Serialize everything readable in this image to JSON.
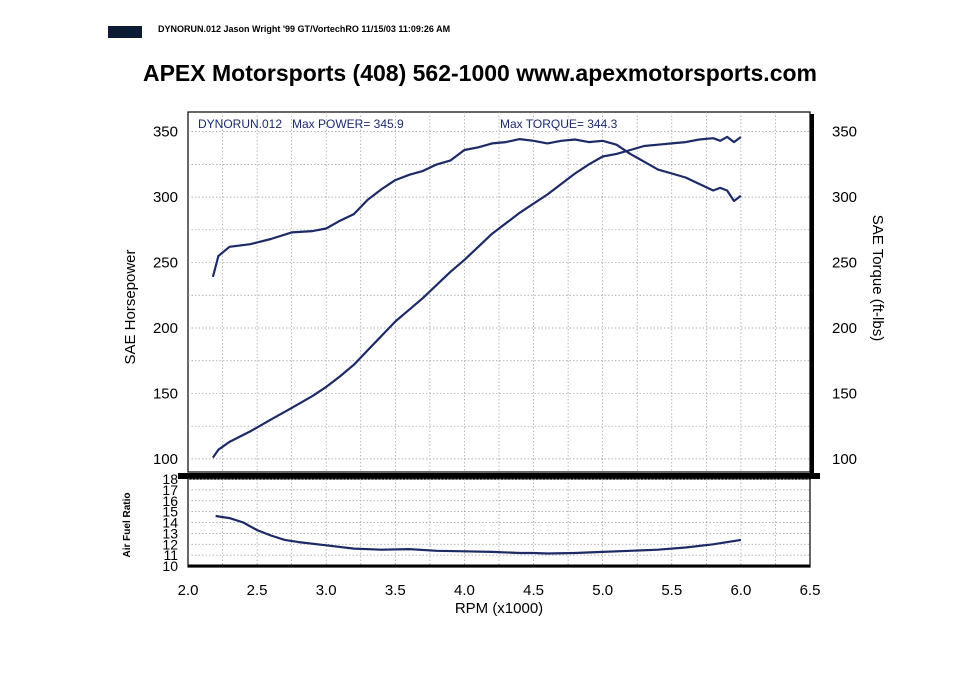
{
  "header": {
    "run_info": "DYNORUN.012   Jason Wright '99 GT/VortechRO   11/15/03 11:09:26 AM"
  },
  "title": "APEX Motorsports (408) 562-1000 www.apexmotorsports.com",
  "annotations": {
    "run": "DYNORUN.012",
    "max_power": "Max POWER= 345.9",
    "max_torque": "Max TORQUE= 344.3"
  },
  "colors": {
    "curve": "#1c2a66",
    "annot": "#1a2a6e",
    "header_block": "#0d1a33"
  },
  "chart_data": [
    {
      "type": "line",
      "xlabel": "RPM (x1000)",
      "ylabel": "SAE Horsepower",
      "y2label": "SAE Torque (ft-lbs)",
      "xlim": [
        2.0,
        6.5
      ],
      "ylim": [
        90,
        365
      ],
      "x_ticks": [
        "2.0",
        "2.5",
        "3.0",
        "3.5",
        "4.0",
        "4.5",
        "5.0",
        "5.5",
        "6.0",
        "6.5"
      ],
      "y_ticks": [
        "100",
        "150",
        "200",
        "250",
        "300",
        "350"
      ],
      "y2_ticks": [
        "100",
        "150",
        "200",
        "250",
        "300",
        "350"
      ],
      "grid": true,
      "series": [
        {
          "axis": "left",
          "x": [
            2.18,
            2.22,
            2.3,
            2.45,
            2.6,
            2.75,
            2.9,
            3.0,
            3.1,
            3.2,
            3.3,
            3.4,
            3.5,
            3.6,
            3.7,
            3.8,
            3.9,
            4.0,
            4.1,
            4.2,
            4.3,
            4.4,
            4.5,
            4.6,
            4.7,
            4.8,
            4.9,
            5.0,
            5.1,
            5.2,
            5.3,
            5.4,
            5.5,
            5.6,
            5.7,
            5.8,
            5.85,
            5.9,
            5.95,
            6.0
          ],
          "y": [
            101,
            107,
            113,
            121,
            130,
            139,
            148,
            155,
            163,
            172,
            183,
            194,
            205,
            214,
            223,
            233,
            243,
            252,
            262,
            272,
            280,
            288,
            295,
            302,
            310,
            318,
            325,
            331,
            333,
            336,
            339,
            340,
            341,
            342,
            344,
            345,
            343,
            346,
            342,
            345.9
          ]
        },
        {
          "axis": "right",
          "x": [
            2.18,
            2.22,
            2.3,
            2.45,
            2.6,
            2.75,
            2.9,
            3.0,
            3.1,
            3.2,
            3.3,
            3.4,
            3.5,
            3.6,
            3.7,
            3.8,
            3.9,
            4.0,
            4.1,
            4.2,
            4.3,
            4.4,
            4.5,
            4.6,
            4.7,
            4.8,
            4.9,
            5.0,
            5.1,
            5.2,
            5.3,
            5.4,
            5.5,
            5.6,
            5.7,
            5.8,
            5.85,
            5.9,
            5.95,
            6.0
          ],
          "y": [
            239,
            255,
            262,
            264,
            268,
            273,
            274,
            276,
            282,
            287,
            298,
            306,
            313,
            317,
            320,
            325,
            328,
            336,
            338,
            341,
            342,
            344.3,
            343,
            341,
            343,
            344,
            342,
            343,
            340,
            333,
            327,
            321,
            318,
            315,
            310,
            305,
            307,
            305,
            297,
            301
          ]
        }
      ]
    },
    {
      "type": "line",
      "ylabel": "Air Fuel Ratio",
      "xlim": [
        2.0,
        6.5
      ],
      "ylim": [
        10,
        18
      ],
      "y_ticks": [
        "10",
        "11",
        "12",
        "13",
        "14",
        "15",
        "16",
        "17",
        "18"
      ],
      "grid": true,
      "series": [
        {
          "x": [
            2.2,
            2.3,
            2.4,
            2.5,
            2.6,
            2.7,
            2.8,
            3.0,
            3.2,
            3.4,
            3.6,
            3.8,
            4.0,
            4.2,
            4.4,
            4.5,
            4.6,
            4.8,
            5.0,
            5.2,
            5.4,
            5.6,
            5.8,
            6.0
          ],
          "y": [
            14.6,
            14.4,
            14.0,
            13.3,
            12.8,
            12.4,
            12.2,
            11.9,
            11.6,
            11.5,
            11.55,
            11.4,
            11.35,
            11.3,
            11.2,
            11.2,
            11.15,
            11.2,
            11.3,
            11.4,
            11.5,
            11.7,
            12.0,
            12.4
          ]
        }
      ]
    }
  ]
}
